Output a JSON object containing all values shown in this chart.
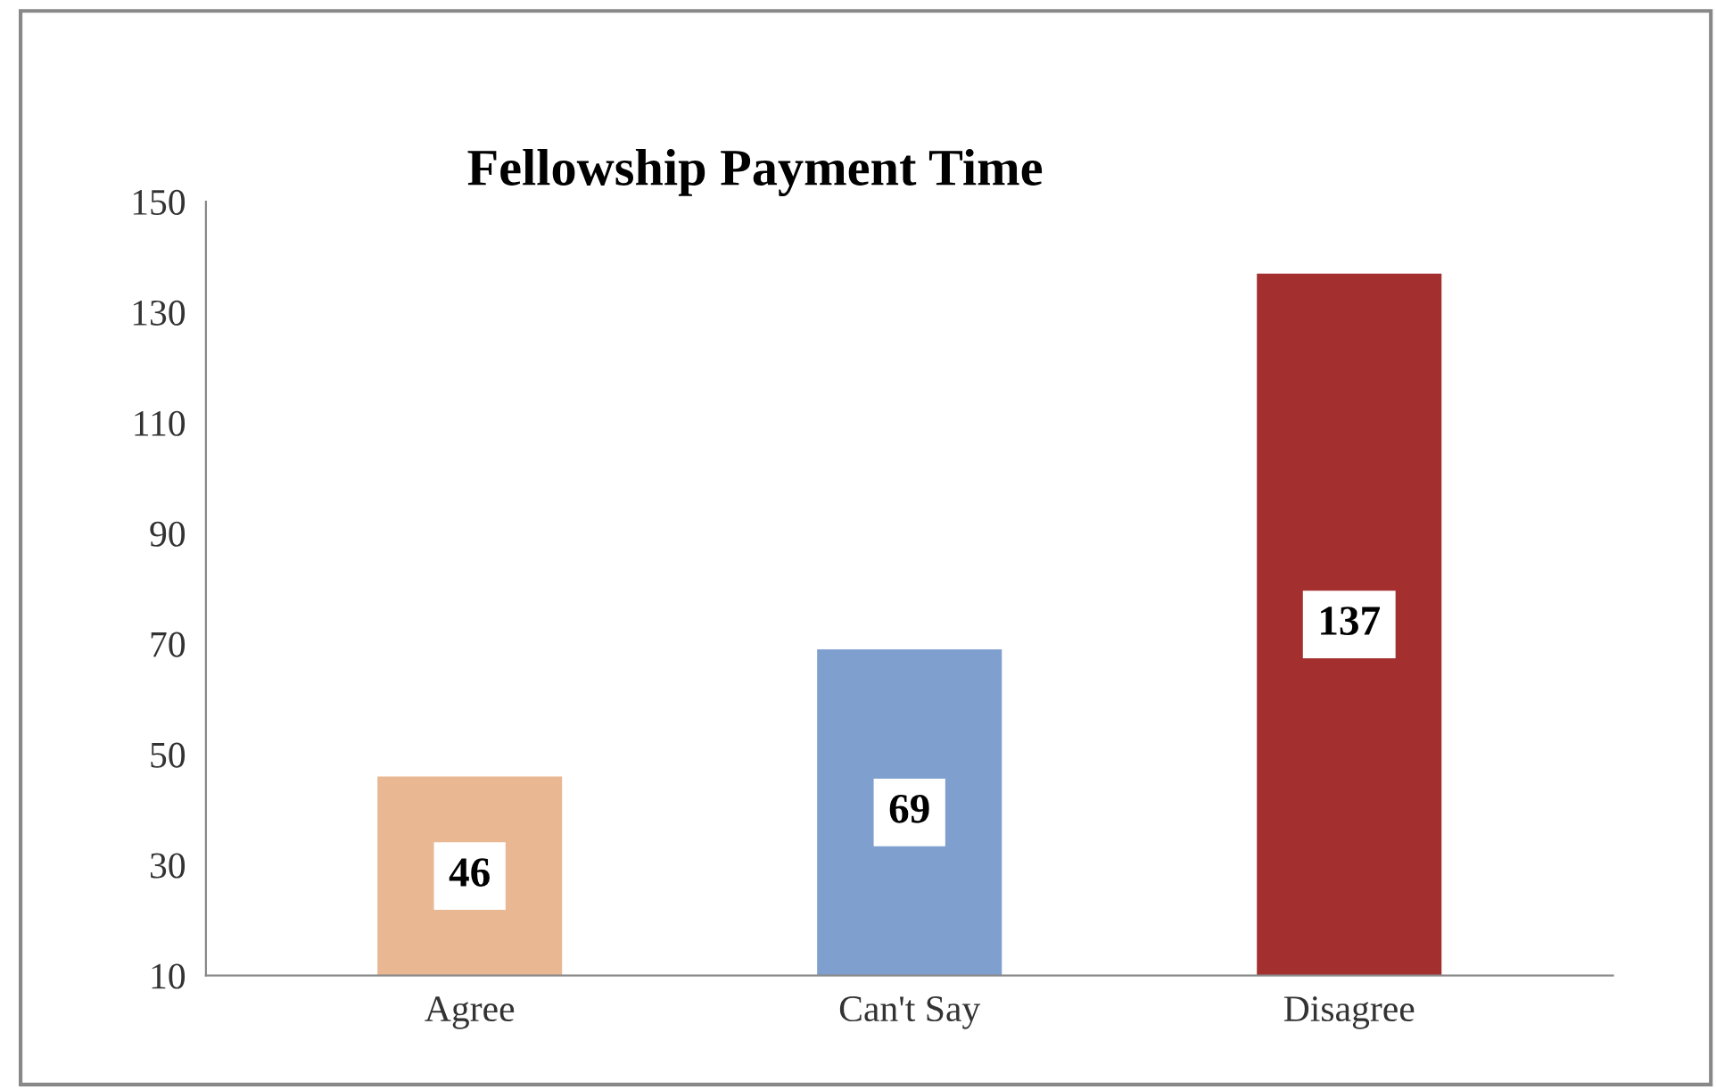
{
  "chart_data": {
    "type": "bar",
    "title": "Fellowship Payment Time",
    "categories": [
      "Agree",
      "Can't Say",
      "Disagree"
    ],
    "values": [
      46,
      69,
      137
    ],
    "colors": [
      "#e9b893",
      "#7f9fcf",
      "#a3302f"
    ],
    "ylim": [
      10,
      150
    ],
    "yticks": [
      10,
      30,
      50,
      70,
      90,
      110,
      130,
      150
    ],
    "grid": false,
    "data_labels": true
  }
}
